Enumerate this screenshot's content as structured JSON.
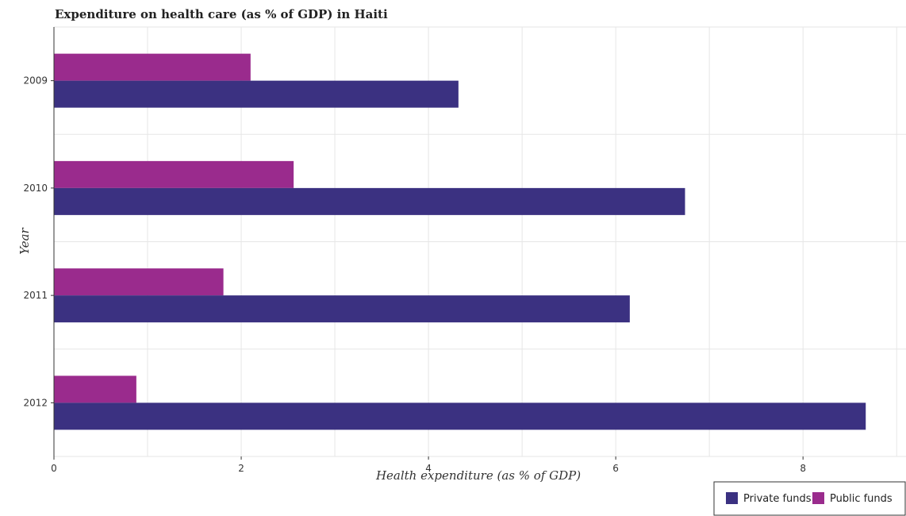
{
  "chart_data": {
    "type": "bar",
    "orientation": "horizontal",
    "title": "Expenditure on health care (as % of GDP) in Haiti",
    "xlabel": "Health expenditure (as % of GDP)",
    "ylabel": "Year",
    "categories": [
      "2009",
      "2010",
      "2011",
      "2012"
    ],
    "xlim": [
      0,
      9.1
    ],
    "xticks": [
      0,
      2,
      4,
      6,
      8
    ],
    "grid": true,
    "legend_position": "bottom-right",
    "series": [
      {
        "name": "Private funds",
        "color": "#3b3181",
        "values": [
          4.32,
          6.74,
          6.15,
          8.67
        ]
      },
      {
        "name": "Public funds",
        "color": "#9a2b8d",
        "values": [
          2.1,
          2.56,
          1.81,
          0.88
        ]
      }
    ]
  }
}
